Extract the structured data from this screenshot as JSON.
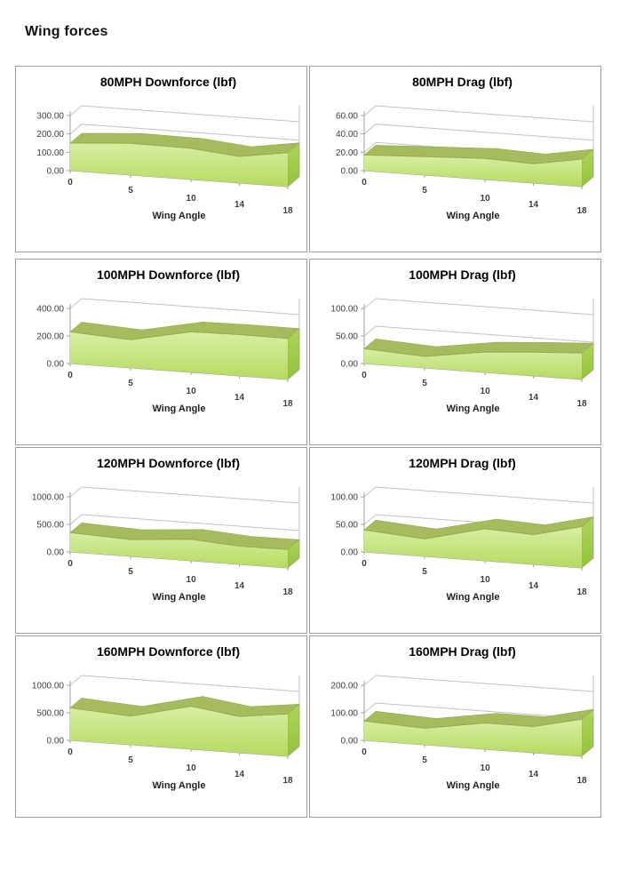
{
  "page": {
    "title": "Wing forces"
  },
  "colors": {
    "area_top": "#a6bb5e",
    "area_front_light": "#d8eea4",
    "area_front_dark": "#b5da5f",
    "area_side_light": "#aed45b",
    "area_side_dark": "#95c23c",
    "area_edge": "#94ab4d",
    "axis": "#9f9f9f",
    "grid": "#c2c2c2",
    "tick_text": "#3d3d3d",
    "border": "#9e9e9e"
  },
  "chart_data": [
    {
      "type": "area",
      "style": "3d",
      "title": "80MPH Downforce (lbf)",
      "xlabel": "Wing Angle",
      "x": [
        0,
        5,
        10,
        14,
        18
      ],
      "xtick_labels": [
        "0",
        "5",
        "10",
        "14",
        "18"
      ],
      "values": [
        150,
        173,
        170,
        145,
        185
      ],
      "ylim": [
        0,
        300
      ],
      "yticks": [
        0,
        100,
        200,
        300
      ],
      "ytick_labels": [
        "0.00",
        "100.00",
        "200.00",
        "300.00"
      ]
    },
    {
      "type": "area",
      "style": "3d",
      "title": "80MPH Drag (lbf)",
      "xlabel": "Wing Angle",
      "x": [
        0,
        5,
        10,
        14,
        18
      ],
      "xtick_labels": [
        "0",
        "5",
        "10",
        "14",
        "18"
      ],
      "values": [
        17,
        20,
        23,
        21,
        30
      ],
      "ylim": [
        0,
        60
      ],
      "yticks": [
        0,
        20,
        40,
        60
      ],
      "ytick_labels": [
        "0.00",
        "20.00",
        "40.00",
        "60.00"
      ]
    },
    {
      "type": "area",
      "style": "3d",
      "title": "100MPH Downforce (lbf)",
      "xlabel": "Wing Angle",
      "x": [
        0,
        5,
        10,
        14,
        18
      ],
      "xtick_labels": [
        "0",
        "5",
        "10",
        "14",
        "18"
      ],
      "values": [
        230,
        205,
        295,
        300,
        298
      ],
      "ylim": [
        0,
        400
      ],
      "yticks": [
        0,
        200,
        400
      ],
      "ytick_labels": [
        "0.00",
        "200.00",
        "400.00"
      ]
    },
    {
      "type": "area",
      "style": "3d",
      "title": "100MPH Drag (lbf)",
      "xlabel": "Wing Angle",
      "x": [
        0,
        5,
        10,
        14,
        18
      ],
      "xtick_labels": [
        "0",
        "5",
        "10",
        "14",
        "18"
      ],
      "values": [
        27,
        21,
        37,
        43,
        48
      ],
      "ylim": [
        0,
        100
      ],
      "yticks": [
        0,
        50,
        100
      ],
      "ytick_labels": [
        "0.00",
        "50.00",
        "100.00"
      ]
    },
    {
      "type": "area",
      "style": "3d",
      "title": "120MPH Downforce (lbf)",
      "xlabel": "Wing Angle",
      "x": [
        0,
        5,
        10,
        14,
        18
      ],
      "xtick_labels": [
        "0",
        "5",
        "10",
        "14",
        "18"
      ],
      "values": [
        350,
        305,
        390,
        330,
        335
      ],
      "ylim": [
        0,
        1000
      ],
      "yticks": [
        0,
        500,
        1000
      ],
      "ytick_labels": [
        "0.00",
        "500.00",
        "1000.00"
      ]
    },
    {
      "type": "area",
      "style": "3d",
      "title": "120MPH Drag (lbf)",
      "xlabel": "Wing Angle",
      "x": [
        0,
        5,
        10,
        14,
        18
      ],
      "xtick_labels": [
        "0",
        "5",
        "10",
        "14",
        "18"
      ],
      "values": [
        40,
        32,
        58,
        54,
        75
      ],
      "ylim": [
        0,
        100
      ],
      "yticks": [
        0,
        50,
        100
      ],
      "ytick_labels": [
        "0.00",
        "50.00",
        "100.00"
      ]
    },
    {
      "type": "area",
      "style": "3d",
      "title": "160MPH Downforce (lbf)",
      "xlabel": "Wing Angle",
      "x": [
        0,
        5,
        10,
        14,
        18
      ],
      "xtick_labels": [
        "0",
        "5",
        "10",
        "14",
        "18"
      ],
      "values": [
        590,
        520,
        780,
        660,
        770
      ],
      "ylim": [
        0,
        1000
      ],
      "yticks": [
        0,
        500,
        1000
      ],
      "ytick_labels": [
        "0.00",
        "500.00",
        "1000.00"
      ]
    },
    {
      "type": "area",
      "style": "3d",
      "title": "160MPH Drag (lbf)",
      "xlabel": "Wing Angle",
      "x": [
        0,
        5,
        10,
        14,
        18
      ],
      "xtick_labels": [
        "0",
        "5",
        "10",
        "14",
        "18"
      ],
      "values": [
        70,
        60,
        95,
        95,
        135
      ],
      "ylim": [
        0,
        200
      ],
      "yticks": [
        0,
        100,
        200
      ],
      "ytick_labels": [
        "0.00",
        "100.00",
        "200.00"
      ]
    }
  ]
}
